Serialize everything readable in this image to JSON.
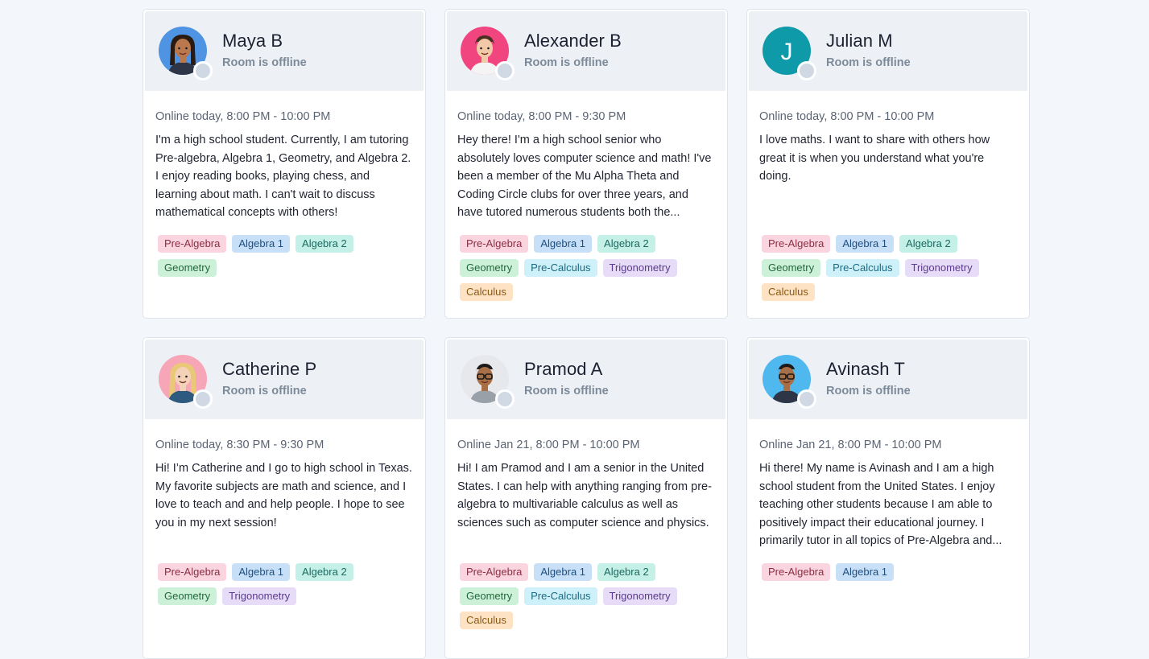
{
  "tutors": [
    {
      "name": "Maya B",
      "status": "Room is offline",
      "availability": "Online today, 8:00 PM - 10:00 PM",
      "bio": "I'm a high school student. Currently, I am tutoring Pre-algebra, Algebra 1, Geometry, and Algebra 2. I enjoy reading books, playing chess, and learning about math. I can't wait to discuss mathematical concepts with others!",
      "avatar": "girl-avatar",
      "avatar_bg": "#4f93e3",
      "tags": [
        "Pre-Algebra",
        "Algebra 1",
        "Algebra 2",
        "Geometry"
      ]
    },
    {
      "name": "Alexander B",
      "status": "Room is offline",
      "availability": "Online today, 8:00 PM - 9:30 PM",
      "bio": "Hey there! I'm a high school senior who absolutely loves computer science and math! I've been a member of the Mu Alpha Theta and Coding Circle clubs for over three years, and have tutored numerous students both the...",
      "avatar": "boy-avatar",
      "avatar_bg": "#f0457f",
      "tags": [
        "Pre-Algebra",
        "Algebra 1",
        "Algebra 2",
        "Geometry",
        "Pre-Calculus",
        "Trigonometry",
        "Calculus"
      ]
    },
    {
      "name": "Julian M",
      "status": "Room is offline",
      "availability": "Online today, 8:00 PM - 10:00 PM",
      "bio": "I love maths. I want to share with others how great it is when you understand what you're doing.",
      "avatar": "initial-avatar",
      "avatar_initial": "J",
      "avatar_bg": "#0e9aa8",
      "tags": [
        "Pre-Algebra",
        "Algebra 1",
        "Algebra 2",
        "Geometry",
        "Pre-Calculus",
        "Trigonometry",
        "Calculus"
      ]
    },
    {
      "name": "Catherine P",
      "status": "Room is offline",
      "availability": "Online today, 8:30 PM - 9:30 PM",
      "bio": "Hi! I’m Catherine and I go to high school in Texas. My favorite subjects are math and science, and I love to teach and and help people. I hope to see you in my next session!",
      "avatar": "blonde-girl-avatar",
      "avatar_bg": "#f7a6b8",
      "tags": [
        "Pre-Algebra",
        "Algebra 1",
        "Algebra 2",
        "Geometry",
        "Trigonometry"
      ]
    },
    {
      "name": "Pramod A",
      "status": "Room is offline",
      "availability": "Online Jan 21, 8:00 PM - 10:00 PM",
      "bio": "Hi! I am Pramod and I am a senior in the United States. I can help with anything ranging from pre-algebra to multivariable calculus as well as sciences such as computer science and physics.",
      "avatar": "glasses-boy-avatar",
      "avatar_bg": "#e6e8ec",
      "tags": [
        "Pre-Algebra",
        "Algebra 1",
        "Algebra 2",
        "Geometry",
        "Pre-Calculus",
        "Trigonometry",
        "Calculus"
      ]
    },
    {
      "name": "Avinash T",
      "status": "Room is offline",
      "availability": "Online Jan 21, 8:00 PM - 10:00 PM",
      "bio": "Hi there! My name is Avinash and I am a high school student from the United States. I enjoy teaching other students because I am able to positively impact their educational journey. I primarily tutor in all topics of Pre-Algebra and...",
      "avatar": "glasses-boy-avatar",
      "avatar_bg": "#4fb8ef",
      "tags": [
        "Pre-Algebra",
        "Algebra 1"
      ]
    }
  ],
  "tag_colors": {
    "Pre-Algebra": "#fad4de",
    "Algebra 1": "#c7e0f7",
    "Algebra 2": "#c5f0e8",
    "Geometry": "#cdf1d8",
    "Pre-Calculus": "#cdf0f9",
    "Trigonometry": "#e7dcf8",
    "Calculus": "#fde3c4"
  },
  "offline_dot_color": "#cfd8e3"
}
